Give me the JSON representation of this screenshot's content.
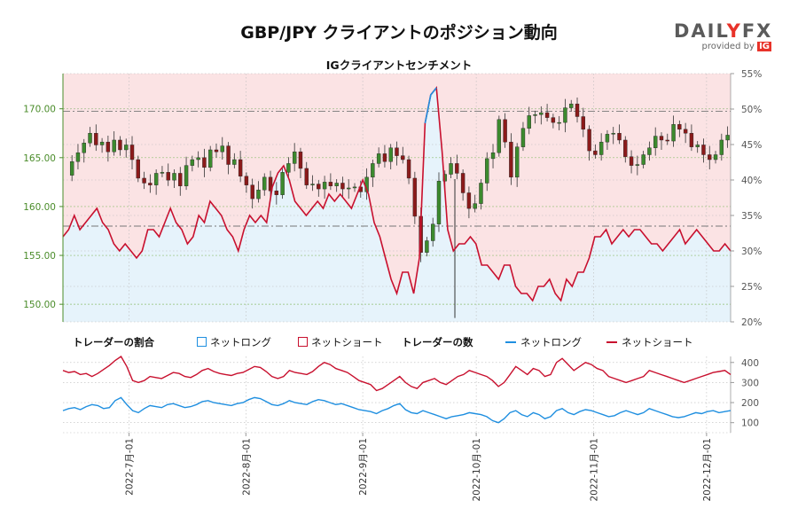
{
  "title": "GBP/JPY クライアントのポジション動向",
  "subtitle": "IGクライアントセンチメント",
  "logo": {
    "brand_left": "DAIL",
    "brand_pipe": "Y",
    "brand_right": "FX",
    "provided_by": "provided by",
    "ig": "IG"
  },
  "legend": {
    "ratio_title": "トレーダーの割合",
    "net_long": "ネットロング",
    "net_short": "ネットショート",
    "count_title": "トレーダーの数"
  },
  "colors": {
    "long": "#1f8fe0",
    "short": "#c8102e",
    "bull": "#3c8a2e",
    "bear": "#8b1a1a",
    "long_bg": "#e6f3fb",
    "short_bg": "#fbe3e4",
    "price_axis": "#4a8c2a"
  },
  "chart_data": [
    {
      "type": "candlestick",
      "x_axis_dates": [
        "2022-7月-01",
        "2022-8月-01",
        "2022-9月-01",
        "2022-10月-01",
        "2022-11月-01",
        "2022-12月-01"
      ],
      "y_left_ticks": [
        "150.00",
        "155.00",
        "160.00",
        "165.00",
        "170.00"
      ],
      "y_left_range": [
        148.2,
        173.6
      ],
      "y_right_ticks": [
        "20%",
        "25%",
        "30%",
        "35%",
        "40%",
        "45%",
        "50%",
        "55%"
      ],
      "y_right_range": [
        20,
        55
      ],
      "price_series": [
        163.2,
        164.6,
        165.5,
        166.5,
        167.5,
        166.3,
        166.6,
        165.6,
        166.8,
        165.8,
        166.3,
        164.8,
        162.9,
        162.4,
        162.2,
        163.4,
        163.5,
        162.7,
        163.4,
        162.1,
        164.2,
        164.8,
        165.0,
        164.0,
        165.8,
        165.6,
        166.2,
        164.3,
        164.8,
        163.1,
        162.2,
        160.8,
        161.7,
        163.0,
        161.6,
        161.2,
        163.5,
        164.4,
        165.6,
        163.9,
        162.2,
        162.3,
        161.8,
        162.5,
        162.1,
        162.4,
        161.8,
        161.9,
        162.0,
        161.5,
        163.0,
        164.4,
        165.4,
        164.6,
        166.0,
        165.2,
        164.8,
        162.9,
        159.0,
        155.3,
        156.5,
        158.2,
        162.6,
        163.3,
        164.4,
        163.4,
        161.4,
        159.8,
        160.3,
        162.4,
        164.9,
        165.5,
        168.9,
        166.6,
        163.0,
        166.1,
        168.0,
        169.3,
        169.4,
        169.6,
        169.1,
        168.6,
        168.6,
        170.1,
        170.5,
        169.2,
        167.9,
        165.7,
        165.3,
        166.6,
        167.4,
        167.5,
        166.8,
        165.1,
        164.2,
        164.3,
        165.3,
        166.0,
        167.2,
        166.8,
        166.7,
        168.4,
        167.9,
        167.5,
        166.1,
        166.3,
        165.3,
        164.8,
        165.3,
        166.8,
        167.3
      ],
      "price_hline": 170.2,
      "sentiment_net_short_pct": [
        32,
        33,
        35,
        33,
        34,
        35,
        36,
        34,
        33,
        31,
        30,
        31,
        30,
        29,
        30,
        33,
        33,
        32,
        34,
        36,
        34,
        33,
        31,
        32,
        35,
        34,
        37,
        36,
        35,
        33,
        32,
        30,
        33,
        35,
        34,
        35,
        34,
        39,
        41,
        42,
        40,
        37,
        36,
        35,
        36,
        37,
        36,
        38,
        37,
        38,
        37,
        36,
        38,
        40,
        38,
        34,
        32,
        29,
        26,
        24,
        27,
        27,
        24,
        29,
        48,
        52,
        53,
        44,
        33,
        30,
        31,
        31,
        32,
        31,
        28,
        28,
        27,
        26,
        28,
        28,
        25,
        24,
        24,
        23,
        25,
        25,
        26,
        24,
        23,
        26,
        25,
        27,
        27,
        29,
        32,
        32,
        33,
        31,
        32,
        33,
        32,
        33,
        33,
        32,
        31,
        31,
        30,
        31,
        32,
        33,
        31,
        32,
        33,
        32,
        31,
        30,
        30,
        31,
        30
      ],
      "sentiment_hlines": [
        33.5,
        49.7
      ],
      "long_short_crossover_note": ""
    },
    {
      "type": "line",
      "y_ticks": [
        "100",
        "200",
        "300",
        "400"
      ],
      "y_range": [
        50,
        430
      ],
      "series": [
        {
          "name": "ネットロング",
          "values": [
            160,
            170,
            175,
            165,
            180,
            190,
            185,
            170,
            175,
            210,
            225,
            190,
            160,
            150,
            170,
            185,
            180,
            175,
            190,
            195,
            185,
            175,
            180,
            190,
            205,
            210,
            200,
            195,
            190,
            185,
            195,
            200,
            215,
            225,
            220,
            205,
            190,
            185,
            195,
            210,
            200,
            195,
            190,
            205,
            215,
            210,
            200,
            190,
            195,
            185,
            175,
            165,
            160,
            155,
            145,
            160,
            170,
            185,
            195,
            165,
            150,
            145,
            160,
            150,
            140,
            130,
            120,
            130,
            135,
            140,
            150,
            145,
            140,
            130,
            110,
            100,
            120,
            150,
            160,
            140,
            130,
            150,
            140,
            120,
            130,
            160,
            170,
            150,
            140,
            155,
            165,
            160,
            150,
            140,
            130,
            135,
            150,
            160,
            150,
            140,
            150,
            170,
            160,
            150,
            140,
            130,
            125,
            130,
            140,
            150,
            145,
            155,
            160,
            150,
            155,
            160
          ]
        },
        {
          "name": "ネットショート",
          "values": [
            360,
            350,
            355,
            340,
            345,
            330,
            345,
            365,
            385,
            410,
            430,
            380,
            310,
            300,
            310,
            330,
            325,
            320,
            335,
            350,
            345,
            330,
            325,
            340,
            360,
            370,
            355,
            345,
            340,
            335,
            345,
            350,
            365,
            380,
            375,
            355,
            330,
            320,
            330,
            360,
            350,
            345,
            340,
            355,
            380,
            400,
            390,
            370,
            360,
            350,
            330,
            310,
            300,
            290,
            260,
            270,
            290,
            310,
            330,
            300,
            280,
            270,
            300,
            310,
            320,
            300,
            290,
            310,
            330,
            340,
            360,
            350,
            340,
            330,
            310,
            280,
            300,
            340,
            380,
            360,
            340,
            370,
            360,
            330,
            340,
            400,
            420,
            390,
            360,
            380,
            400,
            390,
            370,
            360,
            330,
            320,
            310,
            300,
            310,
            320,
            330,
            360,
            350,
            340,
            330,
            320,
            310,
            300,
            310,
            320,
            330,
            340,
            350,
            355,
            360,
            340
          ]
        }
      ]
    }
  ]
}
